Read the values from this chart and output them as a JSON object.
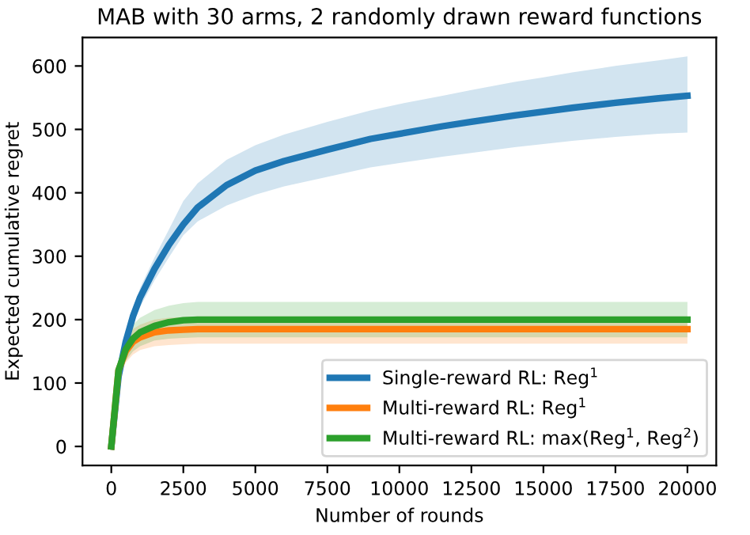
{
  "chart_data": {
    "type": "line",
    "title": "MAB with 30 arms, 2 randomly drawn reward functions",
    "xlabel": "Number of rounds",
    "ylabel": "Expected cumulative regret",
    "x": [
      0,
      250,
      500,
      750,
      1000,
      1500,
      2000,
      2500,
      3000,
      4000,
      5000,
      6000,
      7500,
      9000,
      10000,
      11500,
      12500,
      14000,
      15000,
      16000,
      17500,
      19000,
      20000
    ],
    "series": [
      {
        "name": "Single-reward RL: Reg$^{1}$",
        "color": "#1f77b4",
        "values": [
          0,
          110,
          165,
          205,
          235,
          280,
          318,
          350,
          377,
          412,
          435,
          450,
          468,
          485,
          493,
          505,
          512,
          522,
          528,
          534,
          542,
          549,
          553
        ],
        "lower": [
          0,
          105,
          155,
          192,
          220,
          262,
          298,
          333,
          355,
          380,
          397,
          410,
          425,
          440,
          447,
          457,
          463,
          472,
          477,
          482,
          488,
          493,
          495
        ],
        "upper": [
          0,
          115,
          175,
          218,
          250,
          298,
          342,
          387,
          415,
          452,
          475,
          492,
          512,
          530,
          540,
          553,
          562,
          575,
          582,
          590,
          600,
          609,
          615
        ]
      },
      {
        "name": "Multi-reward RL: Reg$^{1}$",
        "color": "#ff7f0e",
        "values": [
          0,
          120,
          150,
          165,
          172,
          180,
          183,
          184,
          185,
          185,
          185,
          185,
          185,
          185,
          185,
          185,
          185,
          185,
          185,
          185,
          185,
          185,
          185
        ],
        "lower": [
          0,
          108,
          132,
          145,
          152,
          158,
          160,
          161,
          162,
          162,
          162,
          162,
          162,
          162,
          162,
          162,
          162,
          162,
          162,
          162,
          162,
          162,
          162
        ],
        "upper": [
          0,
          132,
          168,
          185,
          192,
          200,
          203,
          204,
          205,
          205,
          205,
          205,
          205,
          205,
          205,
          205,
          205,
          205,
          205,
          205,
          205,
          205,
          205
        ]
      },
      {
        "name": "Multi-reward RL: max(Reg$^{1}$, Reg$^{2}$)",
        "color": "#2ca02c",
        "values": [
          0,
          120,
          153,
          170,
          180,
          190,
          196,
          199,
          200,
          200,
          200,
          200,
          200,
          200,
          200,
          200,
          200,
          200,
          200,
          200,
          200,
          200,
          200
        ],
        "lower": [
          0,
          108,
          135,
          150,
          158,
          167,
          170,
          171,
          172,
          172,
          172,
          172,
          172,
          172,
          172,
          172,
          172,
          172,
          172,
          172,
          172,
          172,
          172
        ],
        "upper": [
          0,
          132,
          172,
          192,
          203,
          215,
          222,
          226,
          228,
          228,
          228,
          228,
          228,
          228,
          228,
          228,
          228,
          228,
          228,
          228,
          228,
          228,
          228
        ]
      }
    ],
    "xlim": [
      -1000,
      21000
    ],
    "xticks": [
      0,
      2500,
      5000,
      7500,
      10000,
      12500,
      15000,
      17500,
      20000
    ],
    "ylim": [
      -30,
      645
    ],
    "yticks": [
      0,
      100,
      200,
      300,
      400,
      500,
      600
    ],
    "legend": "bottom right",
    "grid": false
  }
}
